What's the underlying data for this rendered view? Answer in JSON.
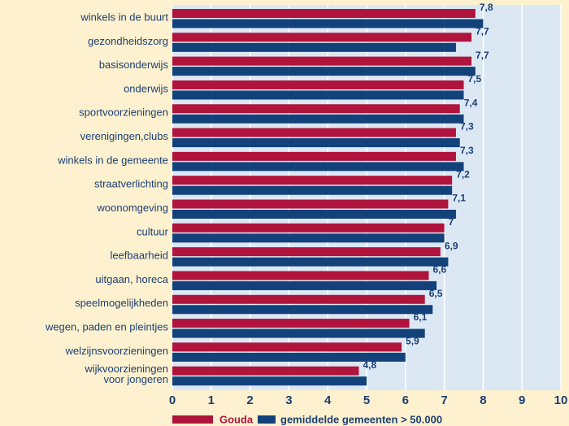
{
  "chart_data": {
    "type": "hbar",
    "categories": [
      "winkels in de buurt",
      "gezondheidszorg",
      "basisonderwijs",
      "onderwijs",
      "sportvoorzieningen",
      "verenigingen,clubs",
      "winkels in de gemeente",
      "straatverlichting",
      "woonomgeving",
      "cultuur",
      "leefbaarheid",
      "uitgaan, horeca",
      "speelmogelijkheden",
      "wegen, paden en pleintjes",
      "welzijnsvoorzieningen",
      "wijkvoorzieningen\nvoor jongeren"
    ],
    "series": [
      {
        "name": "Gouda",
        "color": "#b0143c",
        "values": [
          7.8,
          7.7,
          7.7,
          7.5,
          7.4,
          7.3,
          7.3,
          7.2,
          7.1,
          7,
          6.9,
          6.6,
          6.5,
          6.1,
          5.9,
          4.8
        ],
        "value_labels": [
          "7,8",
          "7,7",
          "7,7",
          "7,5",
          "7,4",
          "7,3",
          "7,3",
          "7,2",
          "7,1",
          "7",
          "6,9",
          "6,6",
          "6,5",
          "6,1",
          "5,9",
          "4,8"
        ]
      },
      {
        "name": "gemiddelde gemeenten > 50.000",
        "color": "#13427a",
        "values": [
          8.0,
          7.3,
          7.8,
          7.5,
          7.5,
          7.4,
          7.5,
          7.2,
          7.3,
          7.0,
          7.1,
          6.8,
          6.7,
          6.5,
          6.0,
          5.0
        ]
      }
    ],
    "xlim": [
      0,
      10
    ],
    "xticks": [
      0,
      1,
      2,
      3,
      4,
      5,
      6,
      7,
      8,
      9,
      10
    ],
    "grid": true
  }
}
